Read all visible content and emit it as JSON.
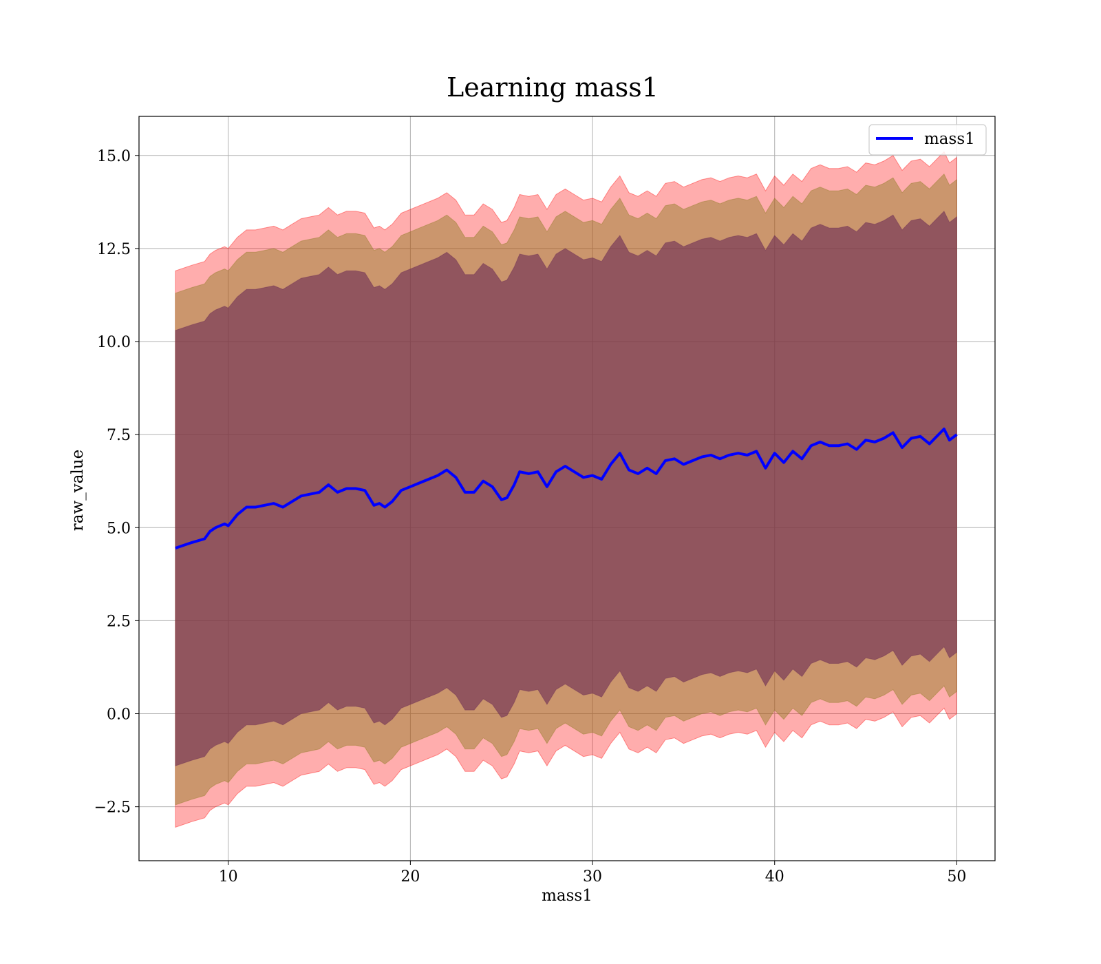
{
  "chart_data": {
    "type": "line",
    "title": "Learning mass1",
    "xlabel": "mass1",
    "ylabel": "raw_value",
    "xlim": [
      5.1,
      52.1
    ],
    "ylim": [
      -3.95,
      16.05
    ],
    "xticks": [
      10,
      20,
      30,
      40,
      50
    ],
    "yticks": [
      -2.5,
      0.0,
      2.5,
      5.0,
      7.5,
      10.0,
      12.5,
      15.0
    ],
    "xtick_labels": [
      "10",
      "20",
      "30",
      "40",
      "50"
    ],
    "ytick_labels": [
      "−2.5",
      "0.0",
      "2.5",
      "5.0",
      "7.5",
      "10.0",
      "12.5",
      "15.0"
    ],
    "grid": true,
    "legend": {
      "position": "top-right",
      "entries": [
        "mass1"
      ]
    },
    "colors": {
      "line": "#0000ff",
      "band_outer": "#ff0000",
      "band_middle": "#8c7a20",
      "band_inner": "#6a2a55",
      "grid": "#b0b0b0"
    },
    "series": [
      {
        "name": "mass1",
        "x": [
          7.1,
          8.0,
          8.7,
          9.0,
          9.3,
          9.8,
          10.0,
          10.5,
          11.0,
          11.5,
          12.0,
          12.5,
          13.0,
          13.5,
          14.0,
          14.5,
          15.0,
          15.5,
          16.0,
          16.5,
          17.0,
          17.5,
          18.0,
          18.3,
          18.6,
          19.0,
          19.5,
          20.0,
          20.5,
          21.0,
          21.5,
          22.0,
          22.5,
          23.0,
          23.5,
          24.0,
          24.5,
          25.0,
          25.3,
          25.7,
          26.0,
          26.5,
          27.0,
          27.5,
          28.0,
          28.5,
          29.0,
          29.5,
          30.0,
          30.5,
          31.0,
          31.5,
          32.0,
          32.5,
          33.0,
          33.5,
          34.0,
          34.5,
          35.0,
          35.5,
          36.0,
          36.5,
          37.0,
          37.5,
          38.0,
          38.5,
          39.0,
          39.5,
          40.0,
          40.5,
          41.0,
          41.5,
          42.0,
          42.5,
          43.0,
          43.5,
          44.0,
          44.5,
          45.0,
          45.5,
          46.0,
          46.5,
          47.0,
          47.5,
          48.0,
          48.5,
          49.0,
          49.3,
          49.6,
          50.0
        ],
        "y": [
          4.45,
          4.6,
          4.7,
          4.9,
          5.0,
          5.1,
          5.05,
          5.35,
          5.55,
          5.55,
          5.6,
          5.65,
          5.55,
          5.7,
          5.85,
          5.9,
          5.95,
          6.15,
          5.95,
          6.05,
          6.05,
          6.0,
          5.6,
          5.65,
          5.55,
          5.7,
          6.0,
          6.1,
          6.2,
          6.3,
          6.4,
          6.55,
          6.35,
          5.95,
          5.95,
          6.25,
          6.1,
          5.75,
          5.8,
          6.15,
          6.5,
          6.45,
          6.5,
          6.1,
          6.5,
          6.65,
          6.5,
          6.35,
          6.4,
          6.3,
          6.7,
          7.0,
          6.55,
          6.45,
          6.6,
          6.45,
          6.8,
          6.85,
          6.7,
          6.8,
          6.9,
          6.95,
          6.85,
          6.95,
          7.0,
          6.95,
          7.05,
          6.6,
          7.0,
          6.75,
          7.05,
          6.85,
          7.2,
          7.3,
          7.2,
          7.2,
          7.25,
          7.1,
          7.35,
          7.3,
          7.4,
          7.55,
          7.15,
          7.4,
          7.45,
          7.25,
          7.5,
          7.65,
          7.35,
          7.5
        ]
      }
    ],
    "bands": {
      "outer": {
        "lower_offset": -7.5,
        "upper_offset": 7.45
      },
      "middle": {
        "lower_offset": -6.9,
        "upper_offset": 6.85
      },
      "inner": {
        "lower_offset": -5.85,
        "upper_offset": 5.85
      }
    }
  }
}
